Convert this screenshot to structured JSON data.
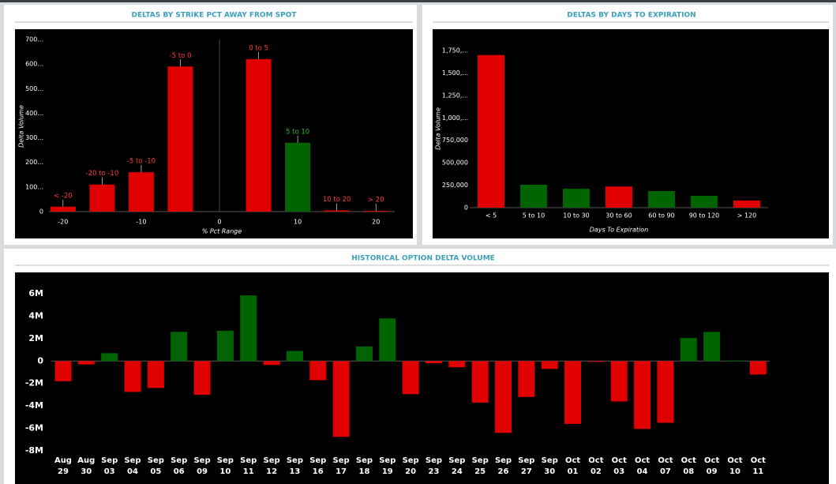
{
  "chart_data": [
    {
      "type": "bar",
      "title": "DELTAS BY STRIKE PCT AWAY FROM SPOT",
      "x_label": "% Pct Range",
      "y_label": "Delta Volume",
      "x": [
        -20,
        -15,
        -10,
        -5,
        5,
        10,
        15,
        20
      ],
      "bar_labels": [
        "< -20",
        "-20 to -10",
        "-5 to -10",
        "-5 to 0",
        "0 to 5",
        "5 to 10",
        "10 to 20",
        "> 20"
      ],
      "values": [
        20000,
        110000,
        160000,
        590000,
        620000,
        280000,
        5000,
        3000
      ],
      "colors": [
        "#e00000",
        "#e00000",
        "#e00000",
        "#e00000",
        "#e00000",
        "#006400",
        "#e00000",
        "#e00000"
      ],
      "xlim": [
        -21.8,
        22.4
      ],
      "xticks": [
        -20,
        -10,
        0,
        10,
        20
      ],
      "ylim": [
        0,
        700000
      ],
      "yticks": [
        0,
        {
          "value": 100000,
          "label": "100..."
        },
        {
          "value": 200000,
          "label": "200..."
        },
        {
          "value": 300000,
          "label": "300..."
        },
        {
          "value": 400000,
          "label": "400..."
        },
        {
          "value": 500000,
          "label": "500..."
        },
        {
          "value": 600000,
          "label": "600..."
        },
        {
          "value": 700000,
          "label": "700..."
        }
      ]
    },
    {
      "type": "bar",
      "title": "DELTAS BY DAYS TO EXPIRATION",
      "x_label": "Days To Expiration",
      "y_label": "Delta Volume",
      "categories": [
        "< 5",
        "5 to 10",
        "10 to 30",
        "30 to 60",
        "60 to 90",
        "90 to 120",
        "> 120"
      ],
      "values": [
        1700000,
        255000,
        210000,
        235000,
        185000,
        132000,
        80000
      ],
      "colors": [
        "#e00000",
        "#006400",
        "#006400",
        "#e00000",
        "#006400",
        "#006400",
        "#e00000"
      ],
      "ylim": [
        0,
        1750000
      ],
      "yticks": [
        0,
        {
          "value": 250000,
          "label": "250,000"
        },
        {
          "value": 500000,
          "label": "500,000"
        },
        {
          "value": 750000,
          "label": "750,000"
        },
        {
          "value": 1000000,
          "label": "1,000,..."
        },
        {
          "value": 1250000,
          "label": "1,250,..."
        },
        {
          "value": 1500000,
          "label": "1,500,..."
        },
        {
          "value": 1750000,
          "label": "1,750,..."
        }
      ]
    },
    {
      "type": "bar",
      "title": "HISTORICAL OPTION DELTA VOLUME",
      "categories": [
        "Aug 29",
        "Aug 30",
        "Sep 03",
        "Sep 04",
        "Sep 05",
        "Sep 06",
        "Sep 09",
        "Sep 10",
        "Sep 11",
        "Sep 12",
        "Sep 13",
        "Sep 16",
        "Sep 17",
        "Sep 18",
        "Sep 19",
        "Sep 20",
        "Sep 23",
        "Sep 24",
        "Sep 25",
        "Sep 26",
        "Sep 27",
        "Sep 30",
        "Oct 01",
        "Oct 02",
        "Oct 03",
        "Oct 04",
        "Oct 07",
        "Oct 08",
        "Oct 09",
        "Oct 10",
        "Oct 11"
      ],
      "values": [
        -1800000,
        -300000,
        700000,
        -2750000,
        -2400000,
        2600000,
        -3000000,
        2700000,
        5850000,
        -350000,
        900000,
        -1700000,
        -6750000,
        1300000,
        3800000,
        -2950000,
        -200000,
        -550000,
        -3700000,
        -6400000,
        -3200000,
        -700000,
        -5600000,
        -50000,
        -3600000,
        -6050000,
        -5500000,
        2050000,
        2600000,
        50000,
        -1200000
      ],
      "positive_color": "#006400",
      "negative_color": "#e00000",
      "ylim": [
        -8000000,
        6000000
      ],
      "yticks": [
        {
          "value": 6000000,
          "label": "6M"
        },
        {
          "value": 4000000,
          "label": "4M"
        },
        {
          "value": 2000000,
          "label": "2M"
        },
        0,
        {
          "value": -2000000,
          "label": "-2M"
        },
        {
          "value": -4000000,
          "label": "-4M"
        },
        {
          "value": -6000000,
          "label": "-6M"
        },
        {
          "value": -8000000,
          "label": "-8M"
        }
      ]
    }
  ]
}
